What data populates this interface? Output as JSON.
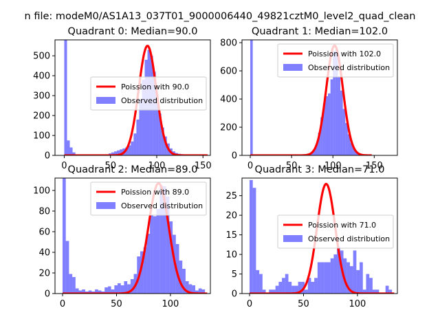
{
  "chart_data": {
    "suptitle": "n file: modeM0/AS1A13_037T01_9000006440_49821cztM0_level2_quad_clean",
    "panels": [
      {
        "type": "bar",
        "title": "Quadrant 0: Median=90.0",
        "curve_label": "Poission with 90.0",
        "hist_label": "Observed distribution",
        "lambda": 90.0,
        "amp": 550,
        "xlim": [
          -10,
          158
        ],
        "ylim": [
          0,
          580
        ],
        "xticks": [
          0,
          50,
          100,
          150
        ],
        "yticks": [
          0,
          100,
          200,
          300,
          400,
          500
        ],
        "legend": "right-middle",
        "bins": [
          [
            0,
            580
          ],
          [
            3,
            75
          ],
          [
            6,
            40
          ],
          [
            9,
            15
          ],
          [
            12,
            5
          ],
          [
            15,
            3
          ],
          [
            18,
            2
          ],
          [
            21,
            2
          ],
          [
            24,
            1
          ],
          [
            27,
            2
          ],
          [
            30,
            2
          ],
          [
            33,
            1
          ],
          [
            36,
            2
          ],
          [
            39,
            3
          ],
          [
            42,
            3
          ],
          [
            45,
            5
          ],
          [
            48,
            10
          ],
          [
            51,
            15
          ],
          [
            54,
            20
          ],
          [
            57,
            25
          ],
          [
            60,
            30
          ],
          [
            63,
            35
          ],
          [
            66,
            40
          ],
          [
            69,
            50
          ],
          [
            72,
            70
          ],
          [
            75,
            110
          ],
          [
            78,
            180
          ],
          [
            81,
            280
          ],
          [
            84,
            380
          ],
          [
            87,
            480
          ],
          [
            90,
            530
          ],
          [
            93,
            500
          ],
          [
            96,
            420
          ],
          [
            99,
            310
          ],
          [
            102,
            210
          ],
          [
            105,
            140
          ],
          [
            108,
            95
          ],
          [
            111,
            60
          ],
          [
            114,
            35
          ],
          [
            117,
            20
          ],
          [
            120,
            12
          ],
          [
            123,
            8
          ],
          [
            126,
            6
          ],
          [
            129,
            4
          ],
          [
            132,
            3
          ],
          [
            135,
            2
          ],
          [
            138,
            1
          ],
          [
            141,
            1
          ],
          [
            144,
            1
          ],
          [
            147,
            1
          ],
          [
            150,
            1
          ]
        ]
      },
      {
        "type": "bar",
        "title": "Quadrant 1: Median=102.0",
        "curve_label": "Poission with 102.0",
        "hist_label": "Observed distribution",
        "lambda": 102.0,
        "amp": 780,
        "xlim": [
          -10,
          178
        ],
        "ylim": [
          0,
          820
        ],
        "xticks": [
          0,
          50,
          100,
          150
        ],
        "yticks": [
          0,
          200,
          400,
          600,
          800
        ],
        "legend": "top-right",
        "bins": [
          [
            0,
            820
          ],
          [
            3,
            4
          ],
          [
            6,
            2
          ],
          [
            9,
            1
          ],
          [
            12,
            1
          ],
          [
            70,
            10
          ],
          [
            73,
            20
          ],
          [
            76,
            40
          ],
          [
            79,
            80
          ],
          [
            82,
            160
          ],
          [
            85,
            270
          ],
          [
            88,
            370
          ],
          [
            91,
            420
          ],
          [
            94,
            440
          ],
          [
            97,
            540
          ],
          [
            100,
            740
          ],
          [
            103,
            760
          ],
          [
            106,
            560
          ],
          [
            109,
            460
          ],
          [
            112,
            330
          ],
          [
            115,
            230
          ],
          [
            118,
            150
          ],
          [
            121,
            90
          ],
          [
            124,
            50
          ],
          [
            127,
            25
          ],
          [
            130,
            12
          ],
          [
            133,
            6
          ],
          [
            136,
            3
          ],
          [
            139,
            2
          ],
          [
            142,
            1
          ]
        ]
      },
      {
        "type": "bar",
        "title": "Quadrant 2: Median=89.0",
        "curve_label": "Poission with 89.0",
        "hist_label": "Observed distribution",
        "lambda": 89.0,
        "amp": 107,
        "xlim": [
          -7,
          137
        ],
        "ylim": [
          0,
          112
        ],
        "xticks": [
          0,
          50,
          100
        ],
        "yticks": [
          0,
          20,
          40,
          60,
          80,
          100
        ],
        "legend": "top-right",
        "bins": [
          [
            0,
            112
          ],
          [
            3,
            51
          ],
          [
            6,
            19
          ],
          [
            9,
            16
          ],
          [
            12,
            5
          ],
          [
            15,
            3
          ],
          [
            18,
            4
          ],
          [
            21,
            2
          ],
          [
            24,
            3
          ],
          [
            27,
            2
          ],
          [
            30,
            4
          ],
          [
            33,
            3
          ],
          [
            36,
            2
          ],
          [
            39,
            6
          ],
          [
            42,
            7
          ],
          [
            45,
            4
          ],
          [
            48,
            8
          ],
          [
            51,
            10
          ],
          [
            54,
            8
          ],
          [
            57,
            12
          ],
          [
            60,
            9
          ],
          [
            63,
            14
          ],
          [
            66,
            19
          ],
          [
            69,
            36
          ],
          [
            72,
            41
          ],
          [
            75,
            45
          ],
          [
            78,
            58
          ],
          [
            81,
            76
          ],
          [
            84,
            75
          ],
          [
            87,
            82
          ],
          [
            90,
            105
          ],
          [
            93,
            104
          ],
          [
            96,
            94
          ],
          [
            99,
            70
          ],
          [
            102,
            57
          ],
          [
            105,
            48
          ],
          [
            108,
            32
          ],
          [
            111,
            24
          ],
          [
            114,
            12
          ],
          [
            117,
            9
          ],
          [
            120,
            8
          ],
          [
            123,
            3
          ],
          [
            126,
            5
          ],
          [
            129,
            4
          ]
        ]
      },
      {
        "type": "bar",
        "title": "Quadrant 3: Median=71.0",
        "curve_label": "Poission with 71.0",
        "hist_label": "Observed distribution",
        "lambda": 71.0,
        "amp": 28,
        "xlim": [
          -7,
          137
        ],
        "ylim": [
          0,
          29.5
        ],
        "xticks": [
          0,
          50,
          100
        ],
        "yticks": [
          0,
          5,
          10,
          15,
          20,
          25
        ],
        "legend": "right-middle",
        "bins": [
          [
            0,
            29
          ],
          [
            3,
            27
          ],
          [
            6,
            6
          ],
          [
            9,
            5
          ],
          [
            12,
            1
          ],
          [
            18,
            1
          ],
          [
            21,
            1
          ],
          [
            24,
            2
          ],
          [
            27,
            3
          ],
          [
            30,
            4
          ],
          [
            33,
            5
          ],
          [
            36,
            3
          ],
          [
            39,
            2
          ],
          [
            42,
            2
          ],
          [
            45,
            3
          ],
          [
            48,
            3
          ],
          [
            51,
            1
          ],
          [
            54,
            4
          ],
          [
            57,
            3
          ],
          [
            60,
            4
          ],
          [
            63,
            8
          ],
          [
            66,
            8
          ],
          [
            69,
            8
          ],
          [
            72,
            8
          ],
          [
            75,
            9
          ],
          [
            78,
            10
          ],
          [
            81,
            12
          ],
          [
            84,
            11
          ],
          [
            87,
            9
          ],
          [
            90,
            8
          ],
          [
            93,
            7
          ],
          [
            96,
            11
          ],
          [
            99,
            6
          ],
          [
            102,
            8
          ],
          [
            105,
            1
          ],
          [
            108,
            5
          ],
          [
            111,
            4
          ],
          [
            114,
            1
          ],
          [
            117,
            1
          ],
          [
            126,
            2
          ],
          [
            129,
            1
          ]
        ]
      }
    ]
  }
}
